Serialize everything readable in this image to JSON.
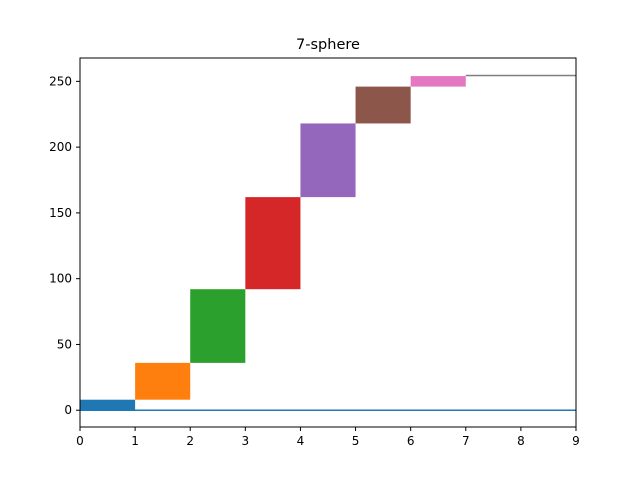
{
  "chart_data": {
    "type": "bar",
    "title": "7-sphere",
    "xlabel": "",
    "ylabel": "",
    "xlim": [
      0,
      9
    ],
    "ylim": [
      -12.75,
      267.75
    ],
    "grid": false,
    "legend": "none",
    "x_ticks": [
      0,
      1,
      2,
      3,
      4,
      5,
      6,
      7,
      8,
      9
    ],
    "y_ticks": [
      0,
      50,
      100,
      150,
      200,
      250
    ],
    "bars": [
      {
        "x_start": 0,
        "x_end": 1,
        "y_bottom": 0,
        "y_top": 8,
        "color": "#1f77b4"
      },
      {
        "x_start": 1,
        "x_end": 2,
        "y_bottom": 8,
        "y_top": 36,
        "color": "#ff7f0e"
      },
      {
        "x_start": 2,
        "x_end": 3,
        "y_bottom": 36,
        "y_top": 92,
        "color": "#2ca02c"
      },
      {
        "x_start": 3,
        "x_end": 4,
        "y_bottom": 92,
        "y_top": 162,
        "color": "#d62728"
      },
      {
        "x_start": 4,
        "x_end": 5,
        "y_bottom": 162,
        "y_top": 218,
        "color": "#9467bd"
      },
      {
        "x_start": 5,
        "x_end": 6,
        "y_bottom": 218,
        "y_top": 246,
        "color": "#8c564b"
      },
      {
        "x_start": 6,
        "x_end": 7,
        "y_bottom": 246,
        "y_top": 254,
        "color": "#e377c2"
      },
      {
        "x_start": 7,
        "x_end": 9,
        "y_bottom": 254,
        "y_top": 255,
        "color": "#7f7f7f"
      }
    ],
    "baseline": {
      "y": 0,
      "x_start": 0,
      "x_end": 9,
      "color": "#1f77b4"
    }
  }
}
